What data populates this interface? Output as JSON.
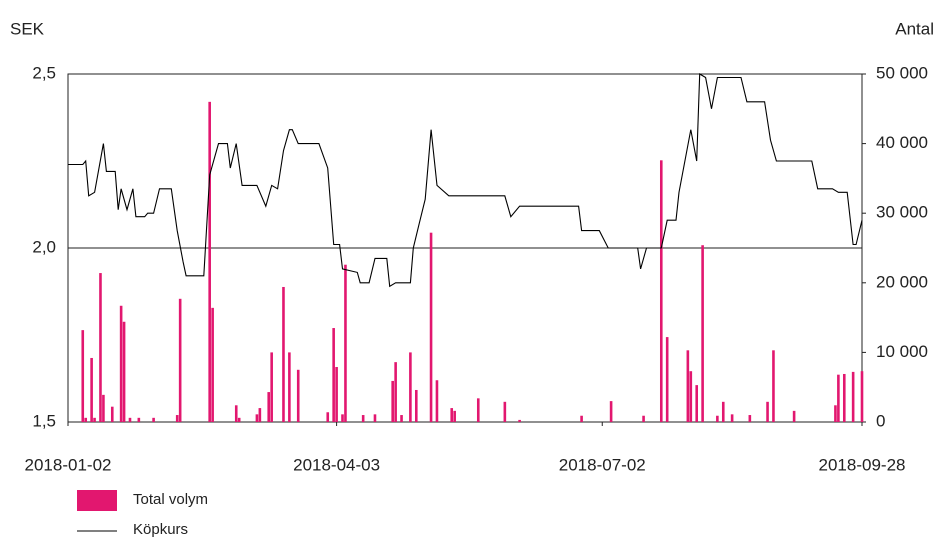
{
  "chart_data": {
    "type": "bar-line",
    "ylabel": "SEK",
    "y2label": "Antal",
    "xlim": [
      "2018-01-02",
      "2018-09-28"
    ],
    "xticks": [
      "2018-01-02",
      "2018-04-03",
      "2018-07-02",
      "2018-09-28"
    ],
    "ylim": [
      1.5,
      2.5
    ],
    "yticks": [
      {
        "value": 1.5,
        "label": "1,5"
      },
      {
        "value": 2,
        "label": "2,0"
      },
      {
        "value": 2.5,
        "label": "2,5"
      }
    ],
    "y2lim": [
      0,
      50000
    ],
    "y2ticks": [
      0,
      {
        "value": 10000,
        "label": "10 000"
      },
      {
        "value": 20000,
        "label": "20 000"
      },
      {
        "value": 30000,
        "label": "30 000"
      },
      {
        "value": 40000,
        "label": "40 000"
      },
      {
        "value": 50000,
        "label": "50 000"
      }
    ],
    "grid": true,
    "series": [
      {
        "name": "Total volym",
        "type": "bar",
        "axis": "y2",
        "color": "#e2176f",
        "x": [
          "2018-01-07",
          "2018-01-08",
          "2018-01-10",
          "2018-01-11",
          "2018-01-13",
          "2018-01-14",
          "2018-01-17",
          "2018-01-20",
          "2018-01-21",
          "2018-01-23",
          "2018-01-26",
          "2018-01-31",
          "2018-02-08",
          "2018-02-09",
          "2018-02-19",
          "2018-02-20",
          "2018-02-28",
          "2018-03-01",
          "2018-03-07",
          "2018-03-08",
          "2018-03-11",
          "2018-03-12",
          "2018-03-16",
          "2018-03-18",
          "2018-03-21",
          "2018-03-31",
          "2018-04-02",
          "2018-04-03",
          "2018-04-05",
          "2018-04-06",
          "2018-04-12",
          "2018-04-16",
          "2018-04-22",
          "2018-04-23",
          "2018-04-25",
          "2018-04-28",
          "2018-04-30",
          "2018-05-05",
          "2018-05-07",
          "2018-05-12",
          "2018-05-13",
          "2018-05-21",
          "2018-05-30",
          "2018-06-04",
          "2018-06-25",
          "2018-07-05",
          "2018-07-16",
          "2018-07-22",
          "2018-07-24",
          "2018-07-31",
          "2018-08-01",
          "2018-08-03",
          "2018-08-05",
          "2018-08-10",
          "2018-08-12",
          "2018-08-15",
          "2018-08-21",
          "2018-08-27",
          "2018-08-29",
          "2018-09-05",
          "2018-09-19",
          "2018-09-20",
          "2018-09-22",
          "2018-09-25",
          "2018-09-28"
        ],
        "values": [
          13200,
          600,
          9200,
          600,
          21400,
          3900,
          2200,
          16700,
          14400,
          600,
          600,
          600,
          1000,
          17700,
          46000,
          16400,
          2400,
          600,
          1100,
          2000,
          4300,
          10000,
          19400,
          10000,
          7500,
          1400,
          13500,
          7900,
          1100,
          22600,
          1000,
          1100,
          5900,
          8600,
          1000,
          10000,
          4600,
          27200,
          6000,
          2000,
          1600,
          3400,
          2900,
          300,
          900,
          3000,
          900,
          37600,
          12200,
          10300,
          7300,
          5300,
          25400,
          900,
          2900,
          1100,
          1000,
          2900,
          10300,
          1600,
          2400,
          6800,
          6900,
          7200,
          7300
        ]
      },
      {
        "name": "Köpkurs",
        "type": "line",
        "axis": "y",
        "color": "#000000",
        "x": [
          "2018-01-02",
          "2018-01-07",
          "2018-01-08",
          "2018-01-09",
          "2018-01-11",
          "2018-01-14",
          "2018-01-15",
          "2018-01-18",
          "2018-01-19",
          "2018-01-20",
          "2018-01-22",
          "2018-01-24",
          "2018-01-25",
          "2018-01-28",
          "2018-01-29",
          "2018-01-31",
          "2018-02-02",
          "2018-02-06",
          "2018-02-08",
          "2018-02-10",
          "2018-02-11",
          "2018-02-17",
          "2018-02-19",
          "2018-02-22",
          "2018-02-25",
          "2018-02-26",
          "2018-02-28",
          "2018-03-02",
          "2018-03-07",
          "2018-03-10",
          "2018-03-12",
          "2018-03-14",
          "2018-03-16",
          "2018-03-18",
          "2018-03-19",
          "2018-03-21",
          "2018-03-28",
          "2018-03-31",
          "2018-04-02",
          "2018-04-04",
          "2018-04-05",
          "2018-04-10",
          "2018-04-11",
          "2018-04-14",
          "2018-04-16",
          "2018-04-20",
          "2018-04-21",
          "2018-04-23",
          "2018-04-28",
          "2018-04-29",
          "2018-05-01",
          "2018-05-03",
          "2018-05-05",
          "2018-05-07",
          "2018-05-11",
          "2018-05-30",
          "2018-06-01",
          "2018-06-04",
          "2018-06-24",
          "2018-06-25",
          "2018-07-01",
          "2018-07-04",
          "2018-07-14",
          "2018-07-15",
          "2018-07-17",
          "2018-07-22",
          "2018-07-24",
          "2018-07-27",
          "2018-07-28",
          "2018-08-01",
          "2018-08-03",
          "2018-08-04",
          "2018-08-06",
          "2018-08-08",
          "2018-08-10",
          "2018-08-18",
          "2018-08-20",
          "2018-08-26",
          "2018-08-28",
          "2018-08-30",
          "2018-09-11",
          "2018-09-13",
          "2018-09-18",
          "2018-09-20",
          "2018-09-23",
          "2018-09-25",
          "2018-09-26",
          "2018-09-28"
        ],
        "values": [
          2.24,
          2.24,
          2.25,
          2.15,
          2.16,
          2.3,
          2.22,
          2.22,
          2.11,
          2.17,
          2.11,
          2.17,
          2.09,
          2.09,
          2.1,
          2.1,
          2.17,
          2.17,
          2.05,
          1.96,
          1.92,
          1.92,
          2.21,
          2.3,
          2.3,
          2.23,
          2.3,
          2.18,
          2.18,
          2.12,
          2.18,
          2.17,
          2.28,
          2.34,
          2.34,
          2.3,
          2.3,
          2.23,
          2.01,
          2.01,
          1.94,
          1.93,
          1.9,
          1.9,
          1.97,
          1.97,
          1.89,
          1.9,
          1.9,
          2.0,
          2.07,
          2.14,
          2.34,
          2.18,
          2.15,
          2.15,
          2.09,
          2.12,
          2.12,
          2.05,
          2.05,
          2.0,
          2.0,
          1.94,
          2.0,
          2.0,
          2.08,
          2.08,
          2.16,
          2.34,
          2.25,
          2.5,
          2.49,
          2.4,
          2.49,
          2.49,
          2.42,
          2.42,
          2.31,
          2.25,
          2.25,
          2.17,
          2.17,
          2.16,
          2.16,
          2.01,
          2.01,
          2.08
        ]
      }
    ]
  }
}
